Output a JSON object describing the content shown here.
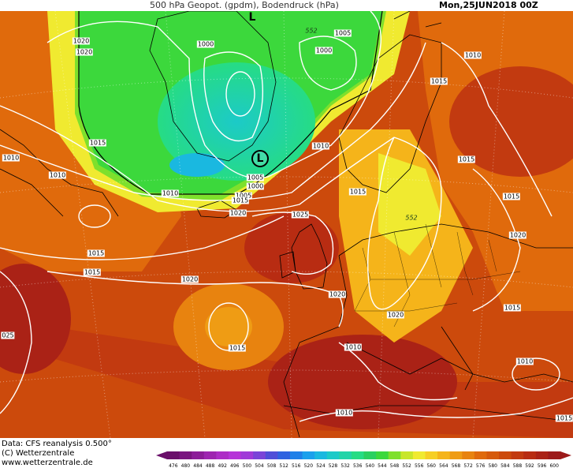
{
  "header": {
    "title": "500 hPa Geopot. (gpdm), Bodendruck (hPa)",
    "datetime": "Mon,25JUN2018 00Z"
  },
  "footer": {
    "data_source": "Data: CFS reanalysis 0.500°",
    "copyright": "(C) Wetterzentrale",
    "website": "www.wetterzentrale.de"
  },
  "colorbar": {
    "ticks": [
      "476",
      "480",
      "484",
      "488",
      "492",
      "496",
      "500",
      "504",
      "508",
      "512",
      "516",
      "520",
      "524",
      "528",
      "532",
      "536",
      "540",
      "544",
      "548",
      "552",
      "556",
      "560",
      "564",
      "568",
      "572",
      "576",
      "580",
      "584",
      "588",
      "592",
      "596",
      "600"
    ],
    "colors": [
      "#6a0f6a",
      "#7a1580",
      "#8c1c98",
      "#9e24b0",
      "#ad2cc6",
      "#b634d8",
      "#a03ad8",
      "#7a44d8",
      "#4f4ed8",
      "#2f62e0",
      "#1f80e8",
      "#1aa0ec",
      "#1ab8e0",
      "#1ccac8",
      "#22d4a8",
      "#26dc84",
      "#2ad060",
      "#3cd83c",
      "#7ee02c",
      "#c8e62a",
      "#f0ea30",
      "#f6cf24",
      "#f5b41a",
      "#ef9c14",
      "#e8830f",
      "#e06a0c",
      "#d65a0c",
      "#cc4a0c",
      "#c23a10",
      "#b82c12",
      "#aa2216",
      "#9c1a1a"
    ]
  },
  "map": {
    "labels": [
      {
        "text": "552",
        "kind": "geopotential"
      },
      {
        "text": "552",
        "kind": "geopotential"
      },
      {
        "text": "552",
        "kind": "geopotential"
      },
      {
        "text": "1020",
        "kind": "pressure"
      },
      {
        "text": "1020",
        "kind": "pressure"
      },
      {
        "text": "1005",
        "kind": "pressure"
      },
      {
        "text": "1000",
        "kind": "pressure"
      },
      {
        "text": "1000",
        "kind": "pressure"
      },
      {
        "text": "1010",
        "kind": "pressure"
      },
      {
        "text": "1015",
        "kind": "pressure"
      },
      {
        "text": "1015",
        "kind": "pressure"
      },
      {
        "text": "1010",
        "kind": "pressure"
      },
      {
        "text": "1010",
        "kind": "pressure"
      },
      {
        "text": "1005",
        "kind": "pressure"
      },
      {
        "text": "1010",
        "kind": "pressure"
      },
      {
        "text": "1000",
        "kind": "pressure"
      },
      {
        "text": "1005",
        "kind": "pressure"
      },
      {
        "text": "1010",
        "kind": "pressure"
      },
      {
        "text": "1015",
        "kind": "pressure"
      },
      {
        "text": "1020",
        "kind": "pressure"
      },
      {
        "text": "1025",
        "kind": "pressure"
      },
      {
        "text": "1015",
        "kind": "pressure"
      },
      {
        "text": "1015",
        "kind": "pressure"
      },
      {
        "text": "1015",
        "kind": "pressure"
      },
      {
        "text": "1015",
        "kind": "pressure"
      },
      {
        "text": "1020",
        "kind": "pressure"
      },
      {
        "text": "1020",
        "kind": "pressure"
      },
      {
        "text": "1020",
        "kind": "pressure"
      },
      {
        "text": "1015",
        "kind": "pressure"
      },
      {
        "text": "1015",
        "kind": "pressure"
      },
      {
        "text": "1010",
        "kind": "pressure"
      },
      {
        "text": "025",
        "kind": "pressure"
      },
      {
        "text": "1015",
        "kind": "pressure"
      },
      {
        "text": "1010",
        "kind": "pressure"
      },
      {
        "text": "1010",
        "kind": "pressure"
      },
      {
        "text": "1015",
        "kind": "pressure"
      },
      {
        "text": "1020",
        "kind": "pressure"
      }
    ],
    "lows": [
      {
        "text": "L",
        "circled": false
      },
      {
        "text": "L",
        "circled": true
      }
    ]
  }
}
